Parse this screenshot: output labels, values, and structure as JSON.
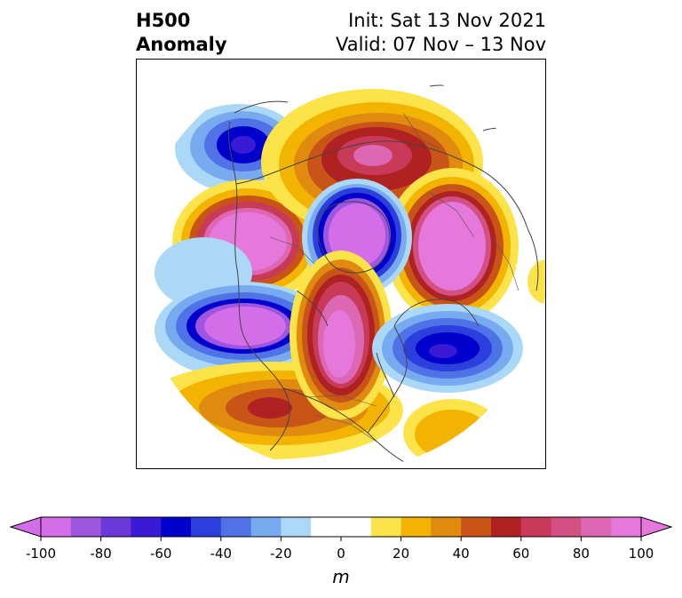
{
  "header": {
    "title_line1": "H500",
    "title_line2": "Anomaly",
    "init_text": "Init: Sat 13 Nov 2021",
    "valid_text": "Valid: 07 Nov – 13 Nov"
  },
  "colorbar": {
    "unit": "m",
    "tick_labels": [
      "-100",
      "-80",
      "-60",
      "-40",
      "-20",
      "0",
      "20",
      "40",
      "60",
      "80",
      "100"
    ],
    "tick_values": [
      -100,
      -80,
      -60,
      -40,
      -20,
      0,
      20,
      40,
      60,
      80,
      100
    ],
    "levels": [
      -100,
      -90,
      -80,
      -70,
      -60,
      -50,
      -40,
      -30,
      -20,
      -10,
      10,
      20,
      30,
      40,
      50,
      60,
      70,
      80,
      90,
      100
    ],
    "colors": [
      "#d36ee8",
      "#9e55e0",
      "#6a38d8",
      "#3a1ad4",
      "#0000cc",
      "#2a3fdc",
      "#4f72e6",
      "#78aaf0",
      "#acd8f8",
      "#ffffff",
      "#fde34a",
      "#f2b400",
      "#e08a10",
      "#c85418",
      "#b02222",
      "#c83a58",
      "#d25082",
      "#dc68b4",
      "#e678dc"
    ],
    "under_color": "#d36ee8",
    "over_color": "#e678dc"
  },
  "map": {
    "projection": "polar-stereographic-north",
    "field": "500 hPa geopotential height anomaly"
  }
}
